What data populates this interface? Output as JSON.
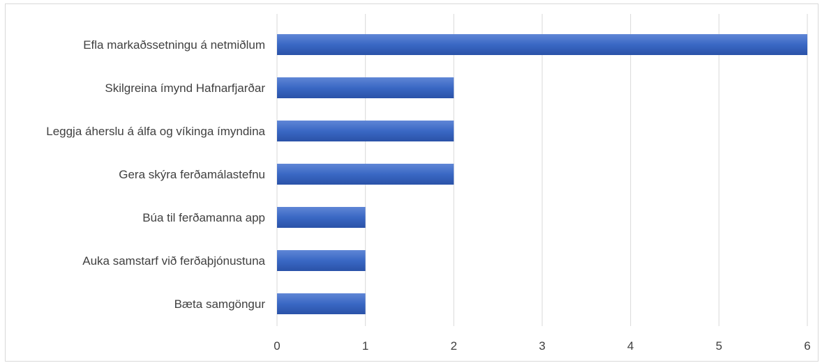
{
  "chart_data": {
    "type": "bar",
    "orientation": "horizontal",
    "categories": [
      "Efla markaðssetningu á netmiðlum",
      "Skilgreina ímynd Hafnarfjarðar",
      "Leggja áherslu á álfa og víkinga ímyndina",
      "Gera skýra ferðamálastefnu",
      "Búa til ferðamanna app",
      "Auka samstarf við ferðaþjónustuna",
      "Bæta samgöngur"
    ],
    "values": [
      6,
      2,
      2,
      2,
      1,
      1,
      1
    ],
    "xlim": [
      0,
      6
    ],
    "xticks": [
      "0",
      "1",
      "2",
      "3",
      "4",
      "5",
      "6"
    ],
    "grid": "vertical",
    "legend": "none",
    "colors": {
      "bar_top": "#5f86d6",
      "bar_mid": "#3a68c4",
      "bar_bottom": "#2a52a8",
      "grid": "#d9d9d9",
      "text": "#404040"
    }
  }
}
